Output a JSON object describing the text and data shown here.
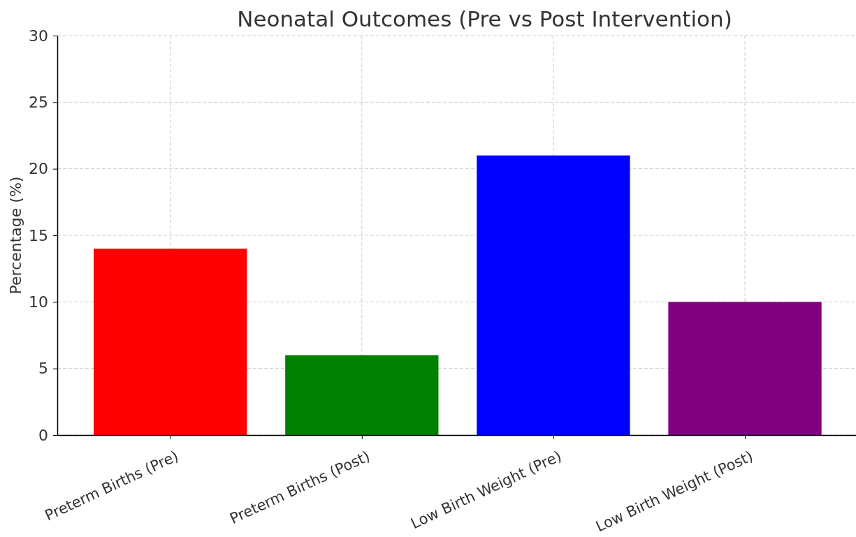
{
  "chart_data": {
    "type": "bar",
    "title": "Neonatal Outcomes (Pre vs Post Intervention)",
    "ylabel": "Percentage (%)",
    "categories": [
      "Preterm Births (Pre)",
      "Preterm Births (Post)",
      "Low Birth Weight (Pre)",
      "Low Birth Weight (Post)"
    ],
    "values": [
      14,
      6,
      21,
      10
    ],
    "colors": [
      "#ff0000",
      "#008000",
      "#0000ff",
      "#800080"
    ],
    "ylim": [
      0,
      30
    ],
    "yticks": [
      0,
      5,
      10,
      15,
      20,
      25,
      30
    ],
    "grid": true
  }
}
